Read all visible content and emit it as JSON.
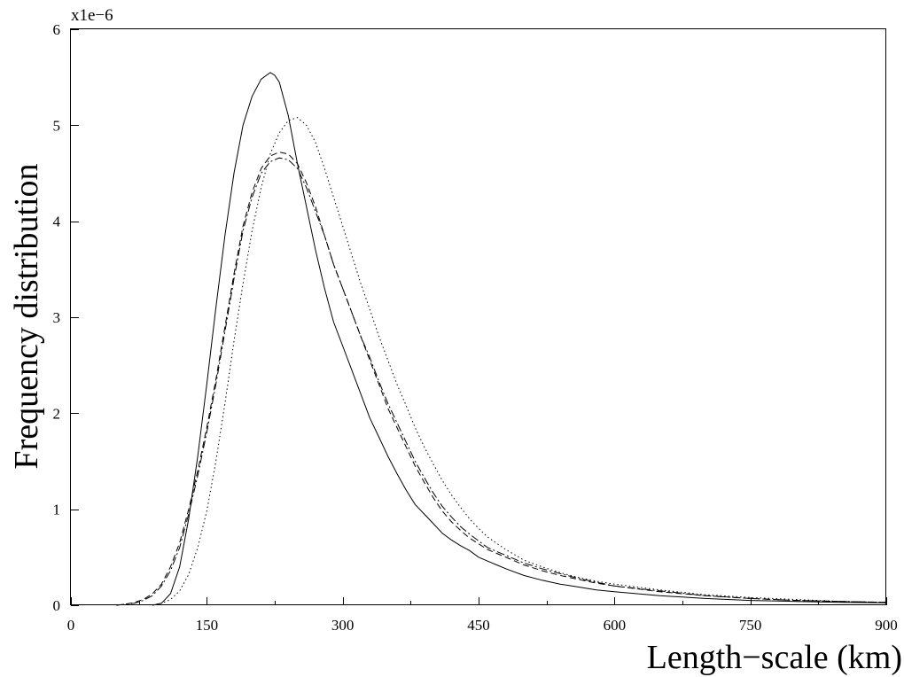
{
  "chart_data": {
    "type": "line",
    "title": "",
    "xlabel": "Length−scale (km)",
    "ylabel": "Frequency distribution",
    "y_multiplier_label": "x1e−6",
    "xlim": [
      0,
      900
    ],
    "ylim": [
      0,
      6
    ],
    "x_ticks": [
      0,
      150,
      300,
      450,
      600,
      750,
      900
    ],
    "x_minor_ticks": [
      75,
      225,
      375,
      525,
      675,
      825
    ],
    "y_ticks": [
      0,
      1,
      2,
      3,
      4,
      5,
      6
    ],
    "grid": false,
    "series": [
      {
        "style": "solid",
        "x": [
          90,
          100,
          110,
          120,
          130,
          140,
          150,
          160,
          170,
          180,
          190,
          200,
          210,
          220,
          225,
          230,
          240,
          250,
          260,
          270,
          280,
          290,
          300,
          310,
          320,
          330,
          340,
          350,
          360,
          370,
          380,
          390,
          400,
          410,
          420,
          430,
          440,
          450,
          460,
          470,
          480,
          500,
          520,
          540,
          560,
          580,
          600,
          650,
          700,
          750,
          800,
          850,
          900
        ],
        "y": [
          0,
          0.02,
          0.12,
          0.4,
          0.9,
          1.55,
          2.3,
          3.1,
          3.85,
          4.5,
          5.0,
          5.3,
          5.48,
          5.55,
          5.52,
          5.45,
          5.1,
          4.6,
          4.15,
          3.7,
          3.3,
          2.95,
          2.7,
          2.45,
          2.2,
          1.95,
          1.75,
          1.55,
          1.37,
          1.2,
          1.05,
          0.95,
          0.85,
          0.75,
          0.68,
          0.62,
          0.57,
          0.5,
          0.46,
          0.42,
          0.38,
          0.31,
          0.26,
          0.22,
          0.19,
          0.16,
          0.14,
          0.1,
          0.07,
          0.05,
          0.04,
          0.03,
          0.025
        ]
      },
      {
        "style": "dashed",
        "x": [
          50,
          60,
          70,
          80,
          90,
          100,
          110,
          120,
          130,
          140,
          150,
          160,
          170,
          180,
          190,
          200,
          210,
          220,
          230,
          240,
          250,
          260,
          270,
          280,
          290,
          300,
          310,
          320,
          330,
          340,
          350,
          360,
          370,
          380,
          390,
          400,
          410,
          420,
          430,
          440,
          450,
          460,
          480,
          500,
          520,
          540,
          560,
          580,
          600,
          650,
          700,
          750,
          800,
          850,
          900
        ],
        "y": [
          0,
          0.01,
          0.03,
          0.06,
          0.12,
          0.22,
          0.4,
          0.65,
          1.0,
          1.4,
          1.85,
          2.35,
          2.9,
          3.45,
          3.95,
          4.3,
          4.55,
          4.68,
          4.72,
          4.7,
          4.6,
          4.4,
          4.15,
          3.85,
          3.55,
          3.3,
          3.05,
          2.8,
          2.55,
          2.3,
          2.05,
          1.85,
          1.65,
          1.45,
          1.28,
          1.12,
          0.98,
          0.87,
          0.78,
          0.7,
          0.64,
          0.58,
          0.5,
          0.42,
          0.36,
          0.31,
          0.27,
          0.23,
          0.2,
          0.14,
          0.1,
          0.07,
          0.05,
          0.04,
          0.03
        ]
      },
      {
        "style": "dashdot",
        "x": [
          50,
          60,
          70,
          80,
          90,
          100,
          110,
          120,
          130,
          140,
          150,
          160,
          170,
          180,
          190,
          200,
          210,
          220,
          230,
          240,
          250,
          260,
          270,
          280,
          290,
          300,
          310,
          320,
          330,
          340,
          350,
          360,
          370,
          380,
          390,
          400,
          410,
          420,
          430,
          440,
          450,
          460,
          480,
          500,
          520,
          540,
          560,
          580,
          600,
          650,
          700,
          750,
          800,
          850,
          900
        ],
        "y": [
          0,
          0.01,
          0.02,
          0.05,
          0.1,
          0.2,
          0.36,
          0.6,
          0.95,
          1.35,
          1.8,
          2.3,
          2.85,
          3.4,
          3.9,
          4.25,
          4.5,
          4.62,
          4.66,
          4.64,
          4.55,
          4.35,
          4.1,
          3.85,
          3.55,
          3.3,
          3.05,
          2.8,
          2.58,
          2.33,
          2.1,
          1.9,
          1.7,
          1.5,
          1.33,
          1.17,
          1.03,
          0.92,
          0.82,
          0.74,
          0.67,
          0.6,
          0.52,
          0.44,
          0.38,
          0.33,
          0.28,
          0.24,
          0.2,
          0.15,
          0.1,
          0.07,
          0.05,
          0.04,
          0.03
        ]
      },
      {
        "style": "dotted",
        "x": [
          90,
          100,
          110,
          120,
          130,
          140,
          150,
          160,
          170,
          180,
          190,
          200,
          210,
          220,
          230,
          240,
          250,
          260,
          270,
          280,
          290,
          300,
          310,
          320,
          330,
          340,
          350,
          360,
          370,
          380,
          390,
          400,
          410,
          420,
          430,
          440,
          450,
          460,
          480,
          500,
          520,
          540,
          560,
          580,
          600,
          650,
          700,
          750,
          800,
          850,
          900
        ],
        "y": [
          0,
          0.02,
          0.06,
          0.15,
          0.32,
          0.6,
          0.98,
          1.5,
          2.1,
          2.75,
          3.35,
          3.9,
          4.35,
          4.7,
          4.92,
          5.05,
          5.08,
          5.0,
          4.82,
          4.55,
          4.25,
          3.95,
          3.65,
          3.35,
          3.08,
          2.8,
          2.55,
          2.3,
          2.08,
          1.85,
          1.65,
          1.47,
          1.3,
          1.15,
          1.02,
          0.9,
          0.8,
          0.71,
          0.58,
          0.47,
          0.4,
          0.34,
          0.29,
          0.25,
          0.22,
          0.16,
          0.11,
          0.08,
          0.06,
          0.04,
          0.03
        ]
      }
    ]
  }
}
